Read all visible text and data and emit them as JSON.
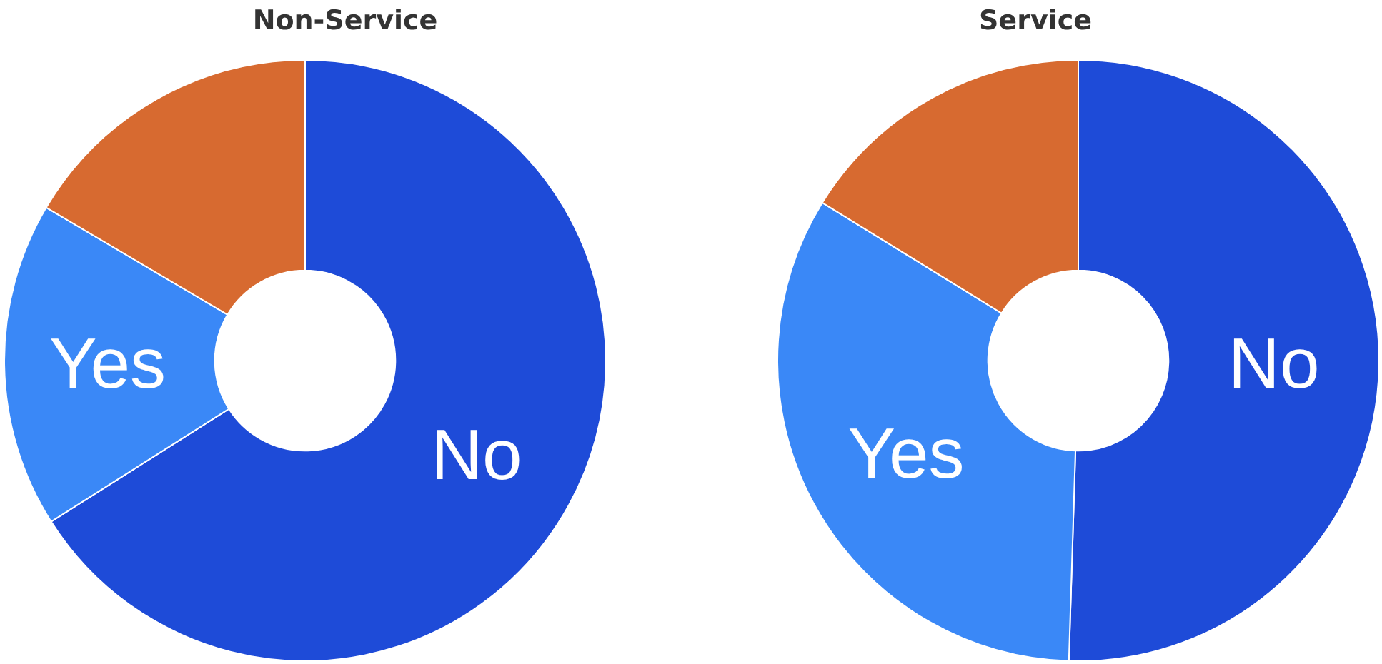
{
  "chart_data": [
    {
      "type": "donut",
      "title": "Non-Service",
      "categories": [
        "No",
        "Yes",
        null
      ],
      "values": [
        66,
        17.5,
        16.5
      ],
      "colors": [
        "#1e4bd8",
        "#3a88f7",
        "#d76a30"
      ]
    },
    {
      "type": "donut",
      "title": "Service",
      "categories": [
        "No",
        "Yes",
        null
      ],
      "values": [
        50.5,
        33.3,
        16.2
      ],
      "colors": [
        "#1e4bd8",
        "#3a88f7",
        "#d76a30"
      ]
    }
  ]
}
